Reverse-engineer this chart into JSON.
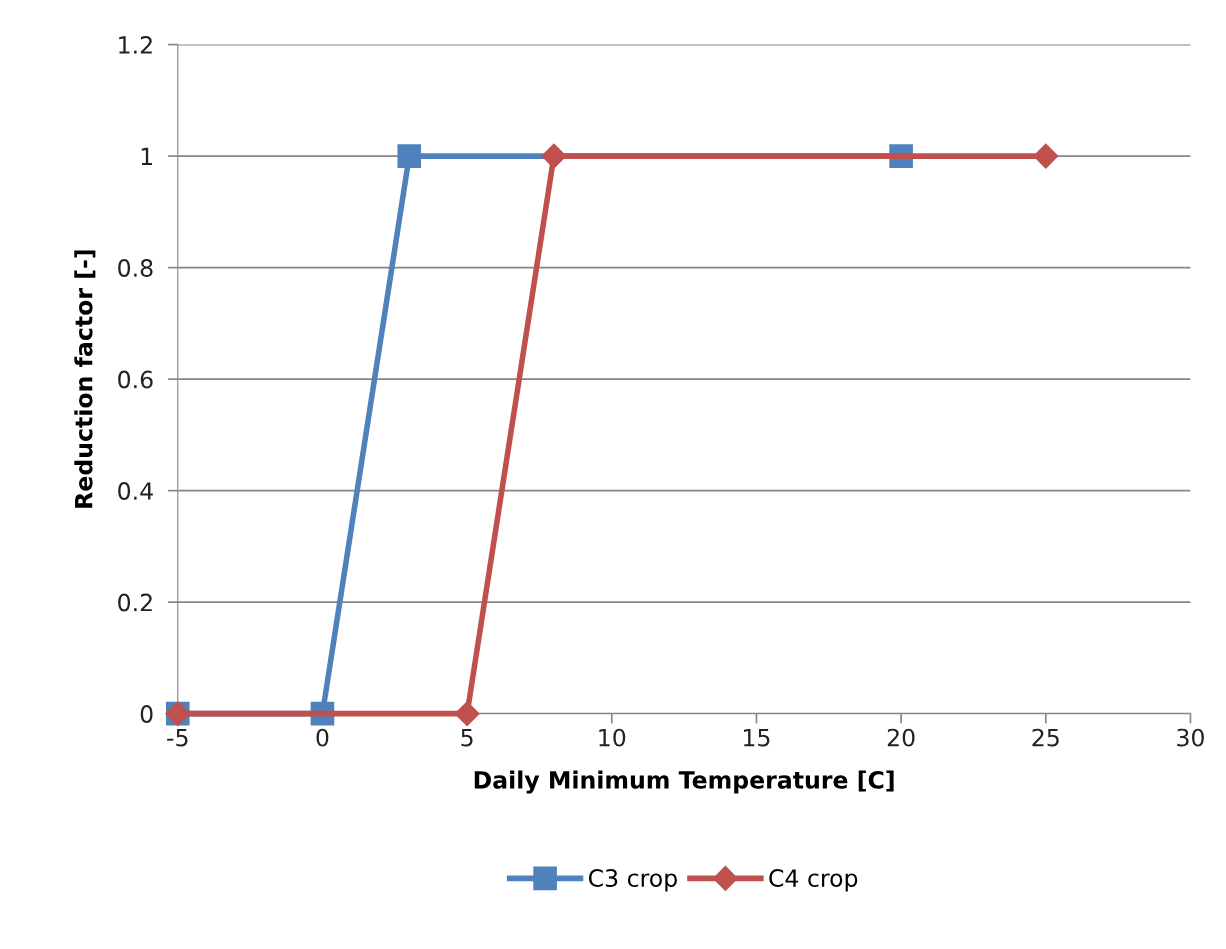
{
  "chart_data": {
    "type": "line",
    "xlabel": "Daily Minimum Temperature [C]",
    "ylabel": "Reduction factor [-]",
    "xlim": [
      -5,
      30
    ],
    "xticks": [
      -5,
      0,
      5,
      10,
      15,
      20,
      25,
      30
    ],
    "ylim": [
      0,
      1.2
    ],
    "yticks": [
      0,
      0.2,
      0.4,
      0.6,
      0.8,
      1,
      1.2
    ],
    "grid": "y",
    "legend": "bottom",
    "line_style": "solid",
    "series": [
      {
        "name": "C3 crop",
        "color": "#4f81bd",
        "marker": "square",
        "x": [
          -5,
          0,
          3,
          20
        ],
        "values": [
          0,
          0,
          1,
          1
        ]
      },
      {
        "name": "C4 crop",
        "color": "#c0504d",
        "marker": "diamond",
        "x": [
          -5,
          5,
          8,
          25
        ],
        "values": [
          0,
          0,
          1,
          1
        ]
      }
    ]
  }
}
